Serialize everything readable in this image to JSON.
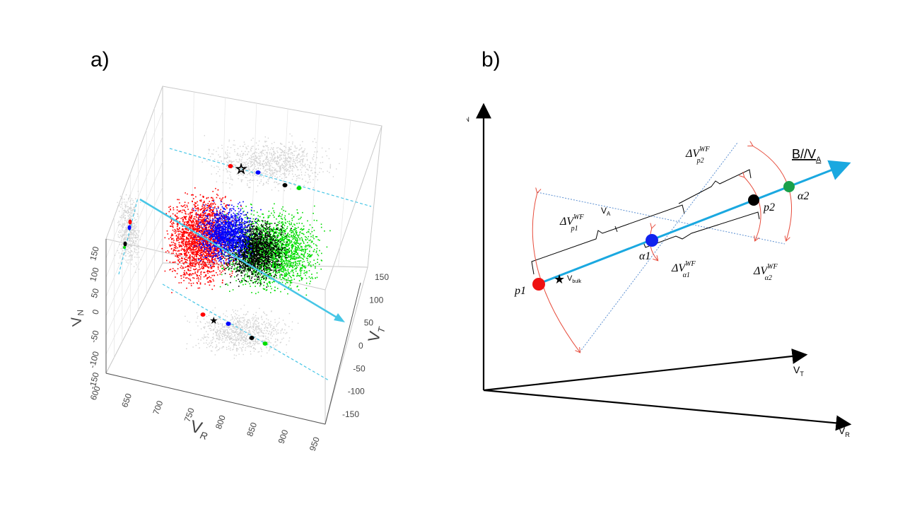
{
  "panels": {
    "a": {
      "label": "a)"
    },
    "b": {
      "label": "b)"
    }
  },
  "panel_a": {
    "axis_r": {
      "label": "V",
      "sub": "R",
      "ticks": [
        "600",
        "650",
        "700",
        "750",
        "800",
        "850",
        "900",
        "950"
      ]
    },
    "axis_t": {
      "label": "V",
      "sub": "T",
      "ticks": [
        "150",
        "100",
        "50",
        "0",
        "-50",
        "-100",
        "-150"
      ]
    },
    "axis_n": {
      "label": "V",
      "sub": "N",
      "ticks": [
        "150",
        "100",
        "50",
        "0",
        "-50",
        "-100",
        "-150"
      ]
    },
    "colors": {
      "p1": "#ff0000",
      "alpha1": "#0000ff",
      "p2": "#000000",
      "alpha2": "#00dd00",
      "projection": "#cccccc",
      "b_field": "#47c6e6"
    }
  },
  "panel_b": {
    "axes": {
      "vn": {
        "main": "V",
        "sub": "N"
      },
      "vt": {
        "main": "V",
        "sub": "T"
      },
      "vr": {
        "main": "V",
        "sub": "R"
      }
    },
    "b_label": {
      "main": "B//V",
      "sub": "A"
    },
    "va_label": {
      "main": "V",
      "sub": "A"
    },
    "vbulk": {
      "main": "V",
      "sub": "bulk"
    },
    "points": {
      "p1": {
        "label": "p1",
        "color": "#ee1111"
      },
      "alpha1": {
        "label": "α1",
        "color": "#1122ee"
      },
      "p2": {
        "label": "p2",
        "color": "#000000"
      },
      "alpha2": {
        "label": "α2",
        "color": "#1aa04a"
      }
    },
    "deltas": {
      "p1": {
        "base": "ΔV",
        "sup": "WF",
        "sub": "p1"
      },
      "p2": {
        "base": "ΔV",
        "sup": "WF",
        "sub": "p2"
      },
      "alpha1": {
        "base": "ΔV",
        "sup": "WF",
        "sub": "α1"
      },
      "alpha2": {
        "base": "ΔV",
        "sup": "WF",
        "sub": "α2"
      }
    },
    "line_color": "#1aa8e0",
    "arc_color": "#e74c3c",
    "dotted_color": "#5b8fd1"
  }
}
